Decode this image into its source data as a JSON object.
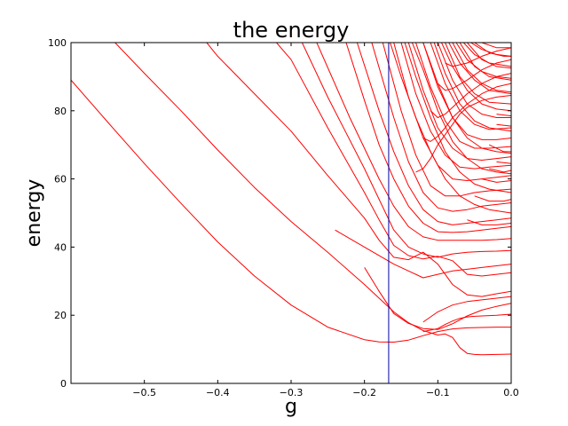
{
  "chart_data": {
    "type": "line",
    "title": "the energy",
    "xlabel": "g",
    "ylabel": "energy",
    "xlim": [
      -0.6,
      0.0
    ],
    "ylim": [
      0,
      100
    ],
    "grid": false,
    "legend": "none",
    "x_ticks": [
      -0.5,
      -0.4,
      -0.3,
      -0.2,
      -0.1,
      0.0
    ],
    "x_tick_labels": [
      "−0.5",
      "−0.4",
      "−0.3",
      "−0.2",
      "−0.1",
      "0.0"
    ],
    "y_ticks": [
      0,
      20,
      40,
      60,
      80,
      100
    ],
    "y_tick_labels": [
      "0",
      "20",
      "40",
      "60",
      "80",
      "100"
    ],
    "line_color": "#ff0000",
    "vline": {
      "x": -0.167,
      "color": "#0000a0"
    },
    "series": [
      {
        "x": [
          -0.6,
          -0.55,
          -0.5,
          -0.45,
          -0.4,
          -0.35,
          -0.3,
          -0.25,
          -0.2,
          -0.18,
          -0.16,
          -0.14,
          -0.12,
          -0.1,
          -0.08,
          -0.06,
          -0.04,
          -0.02,
          0.0
        ],
        "y": [
          89,
          76.7,
          64.5,
          52.8,
          41.5,
          31.5,
          23,
          16.5,
          12.8,
          12.2,
          12.1,
          12.7,
          14,
          15.2,
          16,
          16.3,
          16.4,
          16.5,
          16.5
        ]
      },
      {
        "x": [
          -0.6,
          -0.55,
          -0.5,
          -0.45,
          -0.4,
          -0.35,
          -0.3,
          -0.25,
          -0.2,
          -0.18,
          -0.16,
          -0.14,
          -0.12,
          -0.1,
          -0.09,
          -0.08,
          -0.07,
          -0.06,
          -0.04,
          -0.02,
          0.0
        ],
        "y": [
          null,
          null,
          null,
          null,
          null,
          null,
          null,
          null,
          null,
          null,
          null,
          null,
          null,
          null,
          null,
          null,
          null,
          null,
          null,
          null,
          null
        ]
      },
      {
        "x": [
          -0.54,
          -0.5,
          -0.45,
          -0.4,
          -0.35,
          -0.3,
          -0.25,
          -0.2,
          -0.18,
          -0.17,
          -0.16,
          -0.14,
          -0.12,
          -0.1,
          -0.09,
          -0.08,
          -0.07,
          -0.06,
          -0.05,
          -0.04,
          -0.02,
          0.0
        ],
        "y": [
          100,
          91,
          80,
          68.5,
          57.5,
          47.5,
          38.5,
          29,
          25,
          23,
          21,
          17.8,
          15.5,
          14.2,
          14.5,
          13.5,
          10.5,
          8.8,
          8.5,
          8.4,
          8.5,
          8.6
        ]
      },
      {
        "x": [
          -0.12,
          -0.1,
          -0.09,
          -0.08,
          -0.07,
          -0.06,
          -0.05,
          -0.04,
          -0.02,
          0.0
        ],
        "y": [
          15.2,
          16.1,
          17.3,
          18.3,
          19.1,
          19.5,
          19.7,
          19.8,
          20,
          20.3
        ]
      },
      {
        "x": [
          -0.2,
          -0.18,
          -0.16,
          -0.14,
          -0.12,
          -0.1,
          -0.08,
          -0.06,
          -0.04,
          -0.02,
          0.0
        ],
        "y": [
          34,
          27,
          20.5,
          17.6,
          16.1,
          15.8,
          17.5,
          19.8,
          21.5,
          22.6,
          23.5
        ]
      },
      {
        "x": [
          -0.12,
          -0.1,
          -0.08,
          -0.06,
          -0.04,
          -0.02,
          0.0
        ],
        "y": [
          18,
          21,
          23,
          24,
          24.5,
          25,
          25.5
        ]
      },
      {
        "x": [
          -0.415,
          -0.4,
          -0.35,
          -0.3,
          -0.25,
          -0.2,
          -0.18,
          -0.16,
          -0.14,
          -0.12,
          -0.1,
          -0.08,
          -0.06,
          -0.04,
          -0.02,
          0.0
        ],
        "y": [
          100,
          96,
          85,
          74,
          61,
          48.5,
          42,
          37,
          36.3,
          38.5,
          35,
          29,
          26,
          25.5,
          26.3,
          27
        ]
      },
      {
        "x": [
          -0.24,
          -0.2,
          -0.16,
          -0.14,
          -0.12,
          -0.1,
          -0.08,
          -0.06,
          -0.04,
          -0.02,
          0.0
        ],
        "y": [
          45,
          40,
          35,
          33,
          31,
          32,
          33,
          33.5,
          34,
          34.5,
          35
        ]
      },
      {
        "x": [
          -0.32,
          -0.3,
          -0.25,
          -0.2,
          -0.18,
          -0.16,
          -0.14,
          -0.12,
          -0.1,
          -0.08,
          -0.06,
          -0.04,
          -0.02,
          0.0
        ],
        "y": [
          100,
          95,
          75,
          56,
          48,
          40.5,
          37.5,
          36.5,
          37.3,
          36,
          32,
          31.5,
          32,
          32.5
        ]
      },
      {
        "x": [
          -0.285,
          -0.25,
          -0.2,
          -0.16,
          -0.14,
          -0.12,
          -0.1,
          -0.09,
          -0.08,
          -0.06,
          -0.04,
          -0.02,
          0.0
        ],
        "y": [
          100,
          84,
          63,
          45,
          40,
          38,
          37,
          37.5,
          38,
          38.5,
          38.7,
          38.8,
          39
        ]
      },
      {
        "x": [
          -0.265,
          -0.22,
          -0.18,
          -0.16,
          -0.14,
          -0.12,
          -0.1,
          -0.08,
          -0.06,
          -0.04,
          -0.02,
          0.0
        ],
        "y": [
          100,
          78,
          60,
          52,
          46,
          43,
          42,
          42,
          42,
          42,
          42.2,
          42.5
        ]
      },
      {
        "x": [
          -0.225,
          -0.2,
          -0.18,
          -0.16,
          -0.14,
          -0.12,
          -0.1,
          -0.08,
          -0.06,
          -0.04,
          -0.02,
          0.0
        ],
        "y": [
          100,
          83,
          70,
          60,
          52,
          47,
          44.5,
          44.3,
          44.5,
          45,
          45.5,
          46
        ]
      },
      {
        "x": [
          -0.21,
          -0.18,
          -0.16,
          -0.14,
          -0.12,
          -0.1,
          -0.08,
          -0.06,
          -0.04,
          -0.02,
          0.0
        ],
        "y": [
          100,
          80,
          68,
          58,
          51,
          47.5,
          46.5,
          47,
          47.5,
          48,
          48.5
        ]
      },
      {
        "x": [
          -0.19,
          -0.16,
          -0.14,
          -0.12,
          -0.1,
          -0.08,
          -0.06,
          -0.04,
          -0.02,
          0.0
        ],
        "y": [
          100,
          78,
          65,
          56,
          51.5,
          50.5,
          51,
          52,
          52.5,
          53
        ]
      },
      {
        "x": [
          -0.175,
          -0.15,
          -0.13,
          -0.11,
          -0.09,
          -0.07,
          -0.05,
          -0.03,
          0.0
        ],
        "y": [
          100,
          80,
          67,
          58,
          55,
          55,
          56,
          56.5,
          57
        ]
      },
      {
        "x": [
          -0.16,
          -0.14,
          -0.12,
          -0.1,
          -0.08,
          -0.06,
          -0.04,
          -0.02,
          0.0
        ],
        "y": [
          100,
          84,
          72,
          64,
          60,
          59.5,
          60,
          60.5,
          61
        ]
      },
      {
        "x": [
          -0.15,
          -0.13,
          -0.11,
          -0.09,
          -0.07,
          -0.05,
          -0.03,
          0.0
        ],
        "y": [
          100,
          85,
          74,
          67,
          63.5,
          63,
          63.5,
          64
        ]
      },
      {
        "x": [
          -0.14,
          -0.12,
          -0.1,
          -0.08,
          -0.06,
          -0.04,
          -0.02,
          0.0
        ],
        "y": [
          100,
          86,
          75,
          69,
          66,
          65.5,
          66,
          66.5
        ]
      },
      {
        "x": [
          -0.13,
          -0.11,
          -0.09,
          -0.07,
          -0.05,
          -0.03,
          0.0
        ],
        "y": [
          100,
          87,
          77,
          71,
          69,
          69,
          69.5
        ]
      },
      {
        "x": [
          -0.12,
          -0.1,
          -0.08,
          -0.06,
          -0.04,
          -0.02,
          0.0
        ],
        "y": [
          100,
          87,
          78,
          73,
          71.5,
          71.5,
          72
        ]
      },
      {
        "x": [
          -0.11,
          -0.09,
          -0.07,
          -0.05,
          -0.03,
          0.0
        ],
        "y": [
          100,
          88,
          80,
          76,
          74.5,
          75
        ]
      },
      {
        "x": [
          -0.1,
          -0.08,
          -0.06,
          -0.04,
          -0.02,
          0.0
        ],
        "y": [
          100,
          89,
          82,
          79,
          78,
          78
        ]
      },
      {
        "x": [
          -0.09,
          -0.07,
          -0.05,
          -0.03,
          0.0
        ],
        "y": [
          100,
          90,
          85,
          82.5,
          82
        ]
      },
      {
        "x": [
          -0.08,
          -0.06,
          -0.04,
          -0.02,
          0.0
        ],
        "y": [
          100,
          92,
          88,
          86,
          85.5
        ]
      },
      {
        "x": [
          -0.07,
          -0.05,
          -0.03,
          0.0
        ],
        "y": [
          100,
          93,
          90,
          89
        ]
      },
      {
        "x": [
          -0.06,
          -0.04,
          -0.02,
          0.0
        ],
        "y": [
          100,
          95,
          93,
          92.5
        ]
      },
      {
        "x": [
          -0.05,
          -0.03,
          -0.01,
          0.0
        ],
        "y": [
          100,
          97,
          96,
          96
        ]
      },
      {
        "x": [
          -0.04,
          -0.02,
          0.0
        ],
        "y": [
          100,
          98.5,
          98.5
        ]
      },
      {
        "x": [
          -0.165,
          -0.15,
          -0.13,
          -0.11,
          -0.09,
          -0.07,
          -0.05,
          -0.03,
          0.0
        ],
        "y": [
          100,
          90,
          78,
          68,
          60,
          55,
          52.5,
          51,
          50
        ]
      },
      {
        "x": [
          -0.145,
          -0.13,
          -0.11,
          -0.09,
          -0.07,
          -0.05,
          -0.03,
          0.0
        ],
        "y": [
          100,
          90,
          78,
          68,
          62,
          58.5,
          57,
          56
        ]
      },
      {
        "x": [
          -0.135,
          -0.12,
          -0.1,
          -0.08,
          -0.06,
          -0.04,
          -0.02,
          0.0
        ],
        "y": [
          100,
          92,
          80,
          71,
          66,
          63,
          62,
          61.5
        ]
      },
      {
        "x": [
          -0.12,
          -0.1,
          -0.08,
          -0.06,
          -0.04,
          -0.02,
          0.0
        ],
        "y": [
          100,
          88,
          78,
          72,
          69,
          68,
          67.5
        ]
      },
      {
        "x": [
          -0.105,
          -0.09,
          -0.07,
          -0.05,
          -0.03,
          0.0
        ],
        "y": [
          100,
          91,
          82,
          77,
          75,
          74
        ]
      },
      {
        "x": [
          -0.095,
          -0.08,
          -0.06,
          -0.04,
          -0.02,
          0.0
        ],
        "y": [
          100,
          93,
          86,
          82,
          80.5,
          80
        ]
      },
      {
        "x": [
          -0.085,
          -0.07,
          -0.05,
          -0.03,
          0.0
        ],
        "y": [
          100,
          94,
          89,
          86,
          85
        ]
      },
      {
        "x": [
          -0.075,
          -0.06,
          -0.04,
          -0.02,
          0.0
        ],
        "y": [
          100,
          95,
          91.5,
          90,
          89.5
        ]
      },
      {
        "x": [
          -0.065,
          -0.05,
          -0.03,
          0.0
        ],
        "y": [
          100,
          96.5,
          94,
          93
        ]
      },
      {
        "x": [
          -0.055,
          -0.04,
          -0.02,
          0.0
        ],
        "y": [
          100,
          98,
          96.5,
          96
        ]
      },
      {
        "x": [
          -0.13,
          -0.12,
          -0.11,
          -0.1,
          -0.09,
          -0.08,
          -0.07,
          -0.06,
          -0.04,
          -0.02,
          0.0
        ],
        "y": [
          62,
          63,
          66,
          70,
          73,
          76,
          79,
          81,
          83,
          84,
          84.5
        ]
      },
      {
        "x": [
          -0.12,
          -0.11,
          -0.1,
          -0.09,
          -0.08,
          -0.06,
          -0.04,
          -0.02,
          0.0
        ],
        "y": [
          72,
          71,
          72.5,
          75,
          78,
          82,
          85,
          87,
          88
        ]
      },
      {
        "x": [
          -0.11,
          -0.1,
          -0.09,
          -0.08,
          -0.06,
          -0.04,
          -0.02,
          0.0
        ],
        "y": [
          80,
          78,
          79,
          81,
          85,
          88,
          90,
          91
        ]
      },
      {
        "x": [
          -0.1,
          -0.09,
          -0.08,
          -0.06,
          -0.04,
          -0.02,
          0.0
        ],
        "y": [
          88,
          86,
          86.5,
          89,
          92,
          94,
          95
        ]
      },
      {
        "x": [
          -0.09,
          -0.08,
          -0.06,
          -0.04,
          -0.02,
          0.0
        ],
        "y": [
          94,
          93,
          94,
          96,
          97.5,
          98.5
        ]
      },
      {
        "x": [
          -0.06,
          -0.04,
          -0.02,
          0.0
        ],
        "y": [
          48,
          46.5,
          46.5,
          47
        ]
      },
      {
        "x": [
          -0.05,
          -0.03,
          -0.01,
          0.0
        ],
        "y": [
          55,
          53.5,
          53.5,
          54
        ]
      },
      {
        "x": [
          -0.04,
          -0.02,
          0.0
        ],
        "y": [
          60,
          59,
          59.5
        ]
      },
      {
        "x": [
          -0.03,
          -0.01,
          0.0
        ],
        "y": [
          63,
          62,
          62.5
        ]
      },
      {
        "x": [
          -0.02,
          0.0
        ],
        "y": [
          65,
          64.5
        ]
      },
      {
        "x": [
          -0.03,
          -0.01,
          0.0
        ],
        "y": [
          70,
          68,
          68
        ]
      },
      {
        "x": [
          -0.02,
          0.0
        ],
        "y": [
          76,
          75.5
        ]
      },
      {
        "x": [
          -0.02,
          0.0
        ],
        "y": [
          79,
          78.5
        ]
      }
    ]
  }
}
